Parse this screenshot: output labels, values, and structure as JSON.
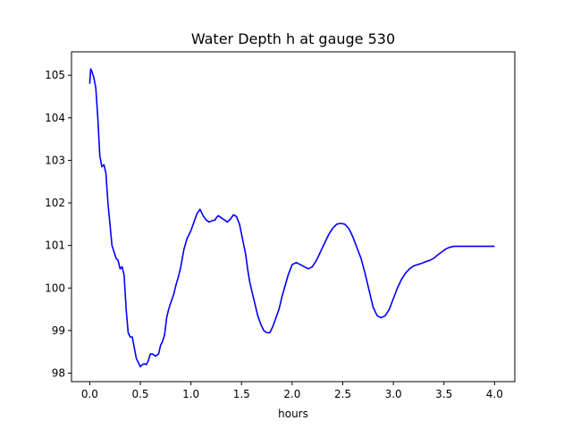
{
  "chart_data": {
    "type": "line",
    "title": "Water Depth h at gauge 530",
    "xlabel": "hours",
    "ylabel": "",
    "xlim": [
      -0.18,
      4.2
    ],
    "ylim": [
      97.8,
      105.55
    ],
    "xticks": [
      0.0,
      0.5,
      1.0,
      1.5,
      2.0,
      2.5,
      3.0,
      3.5,
      4.0
    ],
    "xtick_labels": [
      "0.0",
      "0.5",
      "1.0",
      "1.5",
      "2.0",
      "2.5",
      "3.0",
      "3.5",
      "4.0"
    ],
    "yticks": [
      98,
      99,
      100,
      101,
      102,
      103,
      104,
      105
    ],
    "ytick_labels": [
      "98",
      "99",
      "100",
      "101",
      "102",
      "103",
      "104",
      "105"
    ],
    "grid": false,
    "series": [
      {
        "color": "#0000ff",
        "x": [
          0.0,
          0.01,
          0.02,
          0.04,
          0.06,
          0.08,
          0.1,
          0.12,
          0.14,
          0.16,
          0.18,
          0.2,
          0.22,
          0.24,
          0.26,
          0.28,
          0.3,
          0.32,
          0.34,
          0.36,
          0.38,
          0.4,
          0.42,
          0.44,
          0.46,
          0.48,
          0.5,
          0.52,
          0.54,
          0.56,
          0.58,
          0.6,
          0.62,
          0.65,
          0.68,
          0.7,
          0.72,
          0.74,
          0.76,
          0.78,
          0.8,
          0.83,
          0.85,
          0.88,
          0.9,
          0.93,
          0.96,
          1.0,
          1.03,
          1.06,
          1.09,
          1.12,
          1.15,
          1.18,
          1.21,
          1.24,
          1.25,
          1.27,
          1.3,
          1.33,
          1.36,
          1.39,
          1.42,
          1.45,
          1.48,
          1.51,
          1.54,
          1.56,
          1.58,
          1.6,
          1.63,
          1.66,
          1.69,
          1.72,
          1.75,
          1.78,
          1.81,
          1.84,
          1.87,
          1.9,
          1.93,
          1.96,
          2.0,
          2.04,
          2.08,
          2.12,
          2.16,
          2.2,
          2.24,
          2.27,
          2.3,
          2.33,
          2.36,
          2.4,
          2.44,
          2.48,
          2.52,
          2.56,
          2.6,
          2.64,
          2.68,
          2.72,
          2.76,
          2.8,
          2.84,
          2.88,
          2.92,
          2.96,
          3.0,
          3.04,
          3.08,
          3.12,
          3.16,
          3.2,
          3.24,
          3.28,
          3.32,
          3.36,
          3.4,
          3.44,
          3.48,
          3.52,
          3.55,
          3.58,
          3.6,
          3.62,
          3.64,
          3.66,
          3.7,
          3.75,
          3.8,
          3.85,
          3.9,
          3.95,
          4.0
        ],
        "values": [
          104.8,
          105.15,
          105.1,
          104.95,
          104.7,
          104.0,
          103.1,
          102.85,
          102.9,
          102.7,
          102.0,
          101.5,
          101.0,
          100.85,
          100.7,
          100.65,
          100.45,
          100.5,
          100.3,
          99.5,
          98.95,
          98.85,
          98.85,
          98.6,
          98.35,
          98.25,
          98.15,
          98.2,
          98.22,
          98.2,
          98.3,
          98.45,
          98.45,
          98.4,
          98.45,
          98.65,
          98.75,
          98.9,
          99.3,
          99.5,
          99.65,
          99.85,
          100.05,
          100.3,
          100.5,
          100.9,
          101.15,
          101.35,
          101.55,
          101.75,
          101.85,
          101.7,
          101.6,
          101.55,
          101.58,
          101.6,
          101.65,
          101.7,
          101.65,
          101.6,
          101.55,
          101.62,
          101.72,
          101.68,
          101.5,
          101.15,
          100.8,
          100.45,
          100.15,
          99.95,
          99.65,
          99.35,
          99.15,
          99.0,
          98.95,
          98.95,
          99.1,
          99.3,
          99.5,
          99.8,
          100.05,
          100.3,
          100.55,
          100.6,
          100.55,
          100.5,
          100.45,
          100.5,
          100.65,
          100.8,
          100.95,
          101.1,
          101.25,
          101.4,
          101.5,
          101.52,
          101.5,
          101.4,
          101.2,
          100.95,
          100.7,
          100.35,
          99.95,
          99.55,
          99.35,
          99.3,
          99.35,
          99.5,
          99.75,
          100.0,
          100.2,
          100.35,
          100.45,
          100.52,
          100.55,
          100.58,
          100.62,
          100.65,
          100.7,
          100.78,
          100.85,
          100.92,
          100.95,
          100.97,
          100.98,
          100.98,
          100.98,
          100.98,
          100.98,
          100.98,
          100.98,
          100.98,
          100.98,
          100.98,
          100.98
        ]
      }
    ]
  }
}
